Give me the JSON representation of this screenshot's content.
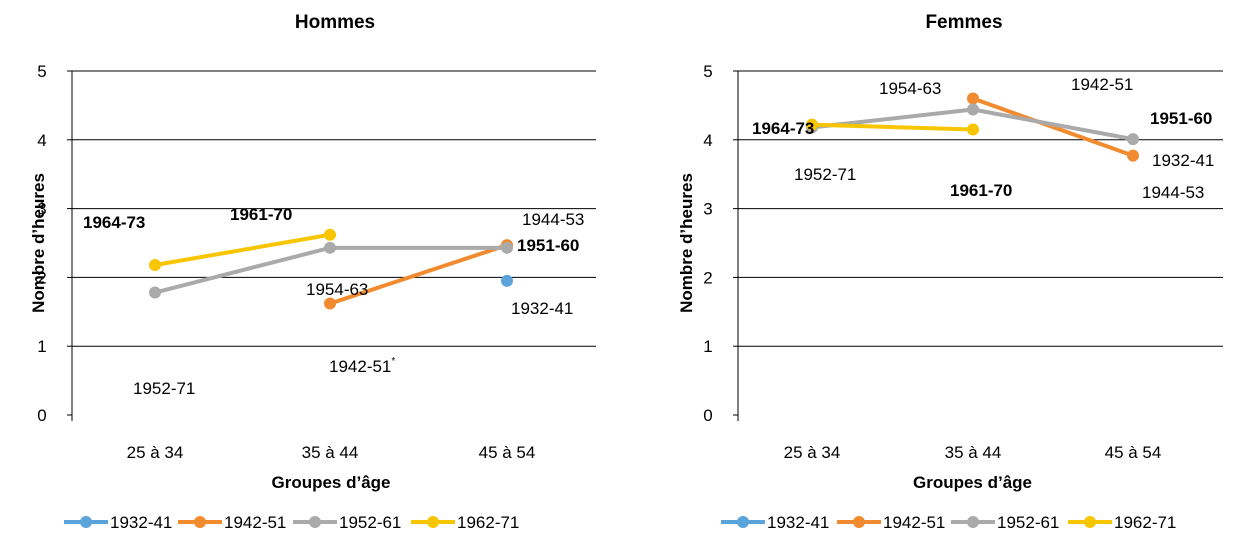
{
  "colors": {
    "1932-41": "#5BA3DB",
    "1942-51": "#F28B30",
    "1952-61": "#AAAAAA",
    "1962-71": "#F8C600"
  },
  "chart_data": [
    {
      "type": "line",
      "title": "Hommes",
      "xlabel": "Groupes d’âge",
      "ylabel": "Nombre d’heures",
      "categories": [
        "25 à 34",
        "35 à 44",
        "45 à 54"
      ],
      "ylim": [
        0,
        5
      ],
      "yticks": [
        "0",
        "1",
        "2",
        "3",
        "4",
        "5"
      ],
      "grid": true,
      "legend_position": "bottom",
      "series": [
        {
          "name": "1932-41",
          "values": [
            null,
            null,
            1.95
          ]
        },
        {
          "name": "1942-51",
          "values": [
            null,
            1.62,
            2.47
          ]
        },
        {
          "name": "1952-61",
          "values": [
            1.78,
            2.43,
            2.43
          ]
        },
        {
          "name": "1962-71",
          "values": [
            2.18,
            2.62,
            null
          ]
        }
      ],
      "annotations": [
        {
          "text": "1964-73",
          "bold": true
        },
        {
          "text": "1961-70",
          "bold": true
        },
        {
          "text": "1944-53",
          "bold": false
        },
        {
          "text": "1951-60",
          "bold": true
        },
        {
          "text": "1954-63",
          "bold": false
        },
        {
          "text": "1932-41",
          "bold": false
        },
        {
          "text": "1942-51*",
          "bold": false
        },
        {
          "text": "1952-71",
          "bold": false
        }
      ]
    },
    {
      "type": "line",
      "title": "Femmes",
      "xlabel": "Groupes d’âge",
      "ylabel": "Nombre d’heures",
      "categories": [
        "25 à 34",
        "35 à 44",
        "45 à 54"
      ],
      "ylim": [
        0,
        5
      ],
      "yticks": [
        "0",
        "1",
        "2",
        "3",
        "4",
        "5"
      ],
      "grid": true,
      "legend_position": "bottom",
      "series": [
        {
          "name": "1932-41",
          "values": [
            null,
            null,
            null
          ]
        },
        {
          "name": "1942-51",
          "values": [
            null,
            4.6,
            3.77
          ]
        },
        {
          "name": "1952-61",
          "values": [
            4.18,
            4.44,
            4.01
          ]
        },
        {
          "name": "1962-71",
          "values": [
            4.22,
            4.15,
            null
          ]
        }
      ],
      "annotations": [
        {
          "text": "1964-73",
          "bold": true
        },
        {
          "text": "1954-63",
          "bold": false
        },
        {
          "text": "1942-51",
          "bold": false
        },
        {
          "text": "1951-60",
          "bold": true
        },
        {
          "text": "1932-41",
          "bold": false
        },
        {
          "text": "1944-53",
          "bold": false
        },
        {
          "text": "1952-71",
          "bold": false
        },
        {
          "text": "1961-70",
          "bold": true
        }
      ]
    }
  ]
}
